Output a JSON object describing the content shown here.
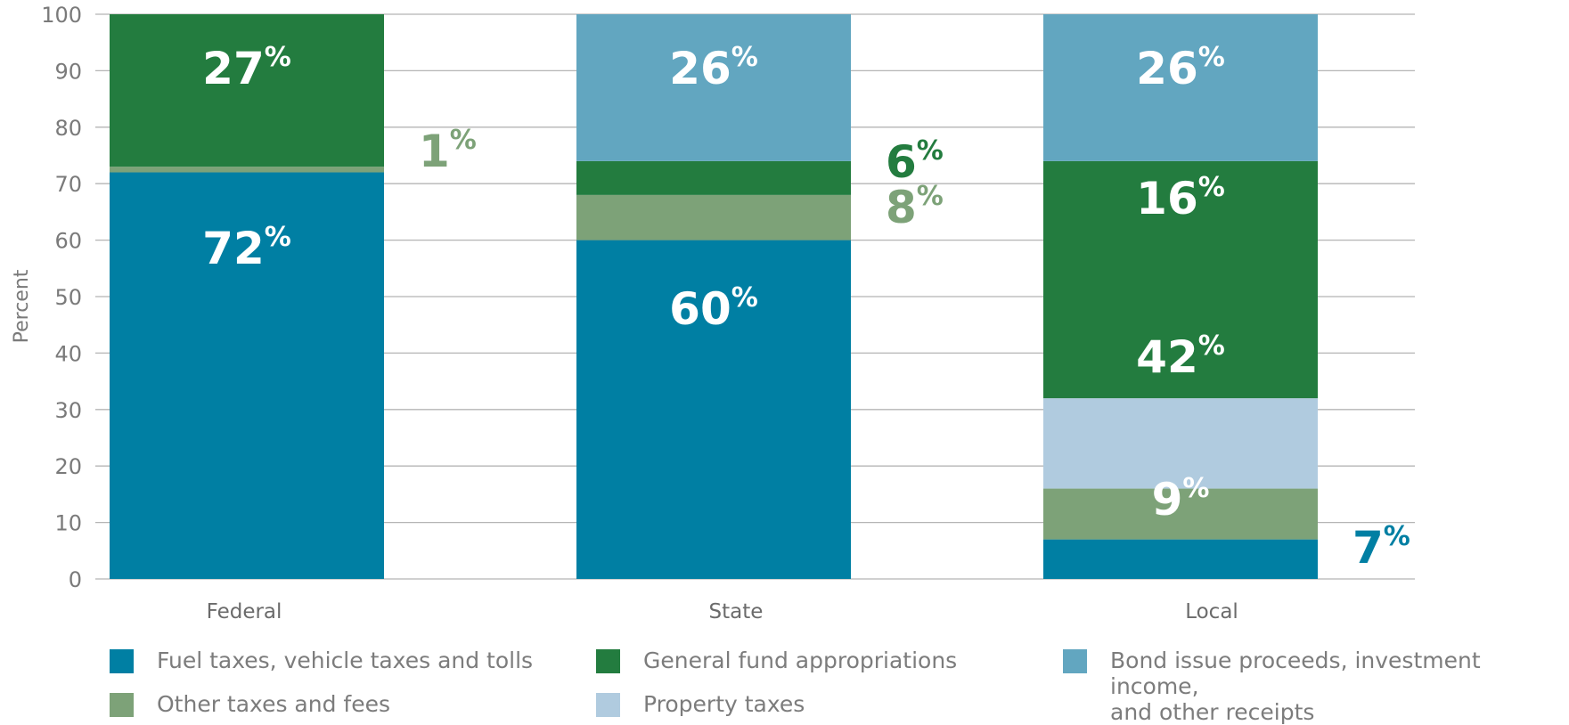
{
  "chart_data": {
    "type": "bar",
    "stacked": true,
    "ylabel": "Percent",
    "xlabel": "",
    "ylim": [
      0,
      100
    ],
    "yticks": [
      0,
      10,
      20,
      30,
      40,
      50,
      60,
      70,
      80,
      90,
      100
    ],
    "grid": true,
    "legend_position": "bottom",
    "categories": [
      "Federal",
      "State",
      "Local"
    ],
    "series": [
      {
        "name": "Fuel taxes, vehicle taxes and tolls",
        "color": "#007fa3",
        "values": [
          72,
          60,
          7
        ]
      },
      {
        "name": "Other taxes and fees",
        "color": "#7da278",
        "values": [
          1,
          8,
          9
        ]
      },
      {
        "name": "Property taxes",
        "color": "#b0cbdf",
        "values": [
          0,
          0,
          16
        ]
      },
      {
        "name": "General fund appropriations",
        "color": "#237c3f",
        "values": [
          27,
          6,
          42
        ]
      },
      {
        "name": "Bond issue proceeds, investment income, and other receipts",
        "color": "#62a6c0",
        "values": [
          0,
          26,
          26
        ]
      }
    ],
    "pct_symbol": "%"
  },
  "legend": [
    {
      "lines": [
        "Fuel taxes, vehicle taxes and tolls"
      ],
      "color": "#007fa3"
    },
    {
      "lines": [
        "General fund appropriations"
      ],
      "color": "#237c3f"
    },
    {
      "lines": [
        "Bond issue proceeds, investment income,",
        "and other receipts"
      ],
      "color": "#62a6c0"
    },
    {
      "lines": [
        "Other taxes and fees"
      ],
      "color": "#7da278"
    },
    {
      "lines": [
        "Property taxes"
      ],
      "color": "#b0cbdf"
    }
  ]
}
